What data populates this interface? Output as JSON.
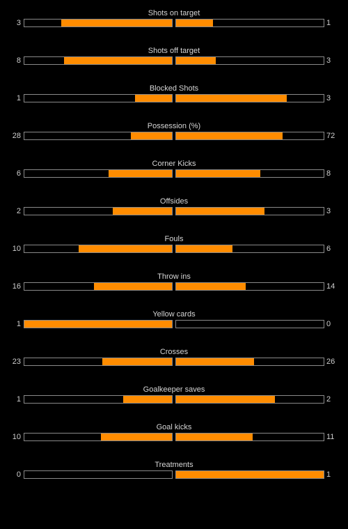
{
  "colors": {
    "background": "#000000",
    "bar_fill": "#ff8c00",
    "bar_border": "#8a8a8a",
    "text": "#cfcfcf"
  },
  "stats": [
    {
      "label": "Shots on target",
      "home": "3",
      "away": "1",
      "home_fill": 0.75,
      "away_fill": 0.25
    },
    {
      "label": "Shots off target",
      "home": "8",
      "away": "3",
      "home_fill": 0.73,
      "away_fill": 0.27
    },
    {
      "label": "Blocked Shots",
      "home": "1",
      "away": "3",
      "home_fill": 0.25,
      "away_fill": 0.75
    },
    {
      "label": "Possession (%)",
      "home": "28",
      "away": "72",
      "home_fill": 0.28,
      "away_fill": 0.72
    },
    {
      "label": "Corner Kicks",
      "home": "6",
      "away": "8",
      "home_fill": 0.43,
      "away_fill": 0.57
    },
    {
      "label": "Offsides",
      "home": "2",
      "away": "3",
      "home_fill": 0.4,
      "away_fill": 0.6
    },
    {
      "label": "Fouls",
      "home": "10",
      "away": "6",
      "home_fill": 0.63,
      "away_fill": 0.38
    },
    {
      "label": "Throw ins",
      "home": "16",
      "away": "14",
      "home_fill": 0.53,
      "away_fill": 0.47
    },
    {
      "label": "Yellow cards",
      "home": "1",
      "away": "0",
      "home_fill": 1.0,
      "away_fill": 0.0
    },
    {
      "label": "Crosses",
      "home": "23",
      "away": "26",
      "home_fill": 0.47,
      "away_fill": 0.53
    },
    {
      "label": "Goalkeeper saves",
      "home": "1",
      "away": "2",
      "home_fill": 0.33,
      "away_fill": 0.67
    },
    {
      "label": "Goal kicks",
      "home": "10",
      "away": "11",
      "home_fill": 0.48,
      "away_fill": 0.52
    },
    {
      "label": "Treatments",
      "home": "0",
      "away": "1",
      "home_fill": 0.0,
      "away_fill": 1.0
    }
  ]
}
